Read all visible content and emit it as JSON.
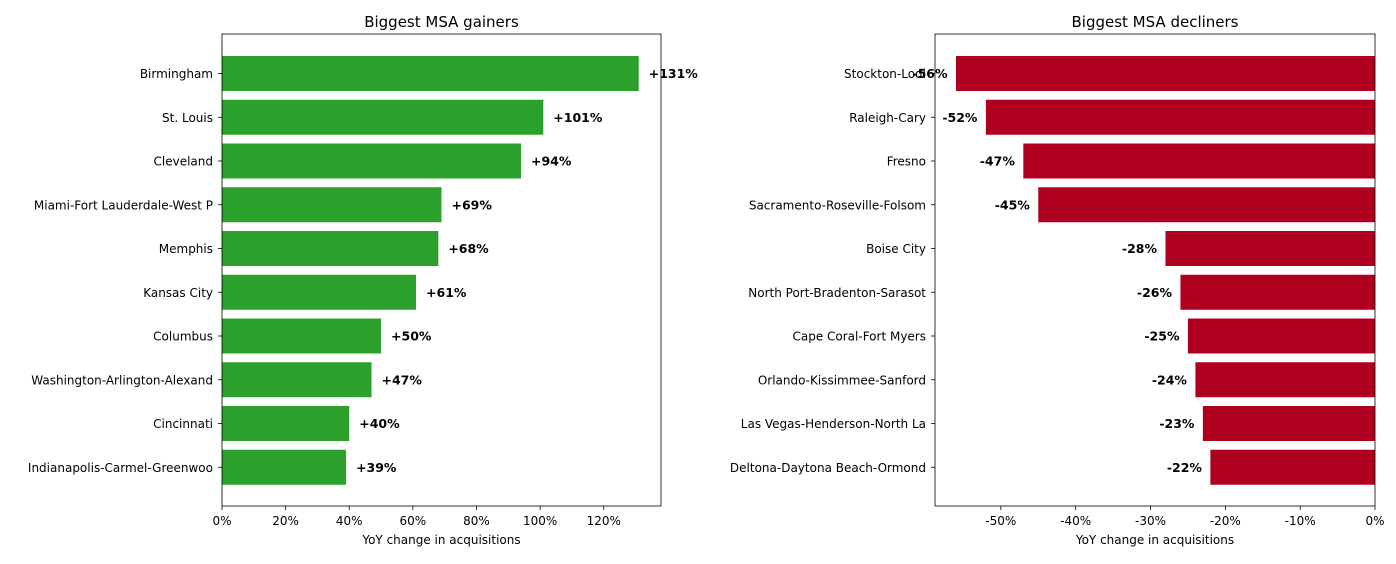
{
  "chart_data": [
    {
      "type": "bar",
      "orientation": "horizontal",
      "title": "Biggest MSA gainers",
      "xlabel": "YoY change in acquisitions",
      "ylabel": "",
      "xlim": [
        0,
        138
      ],
      "xticks": [
        0,
        20,
        40,
        60,
        80,
        100,
        120
      ],
      "xtick_labels": [
        "0%",
        "20%",
        "40%",
        "60%",
        "80%",
        "100%",
        "120%"
      ],
      "color": "#2ca02c",
      "categories": [
        "Birmingham",
        "St. Louis",
        "Cleveland",
        "Miami-Fort Lauderdale-West P",
        "Memphis",
        "Kansas City",
        "Columbus",
        "Washington-Arlington-Alexand",
        "Cincinnati",
        "Indianapolis-Carmel-Greenwoo"
      ],
      "values": [
        131,
        101,
        94,
        69,
        68,
        61,
        50,
        47,
        40,
        39
      ],
      "data_labels": [
        "+131%",
        "+101%",
        "+94%",
        "+69%",
        "+68%",
        "+61%",
        "+50%",
        "+47%",
        "+40%",
        "+39%"
      ]
    },
    {
      "type": "bar",
      "orientation": "horizontal",
      "title": "Biggest MSA decliners",
      "xlabel": "YoY change in acquisitions",
      "ylabel": "",
      "xlim": [
        -58.8,
        0
      ],
      "xticks": [
        -50,
        -40,
        -30,
        -20,
        -10,
        0
      ],
      "xtick_labels": [
        "-50%",
        "-40%",
        "-30%",
        "-20%",
        "-10%",
        "0%"
      ],
      "color": "#b00020",
      "categories": [
        "Stockton-Lodi",
        "Raleigh-Cary",
        "Fresno",
        "Sacramento-Roseville-Folsom",
        "Boise City",
        "North Port-Bradenton-Sarasot",
        "Cape Coral-Fort Myers",
        "Orlando-Kissimmee-Sanford",
        "Las Vegas-Henderson-North La",
        "Deltona-Daytona Beach-Ormond"
      ],
      "values": [
        -56,
        -52,
        -47,
        -45,
        -28,
        -26,
        -25,
        -24,
        -23,
        -22
      ],
      "data_labels": [
        "-56%",
        "-52%",
        "-47%",
        "-45%",
        "-28%",
        "-26%",
        "-25%",
        "-24%",
        "-23%",
        "-22%"
      ]
    }
  ]
}
